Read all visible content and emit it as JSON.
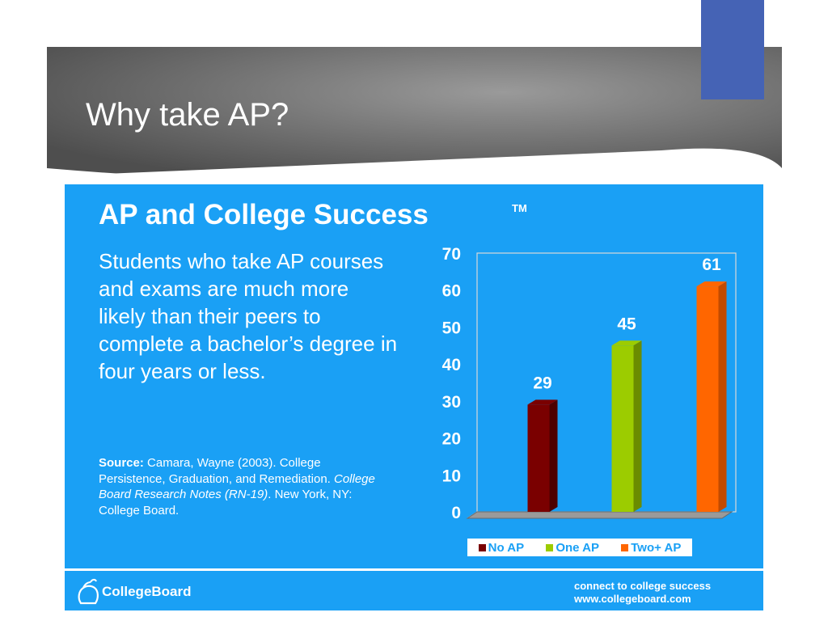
{
  "slide": {
    "title": "Why take AP?"
  },
  "panel": {
    "heading": "AP and College Success",
    "trademark": "TM",
    "body": "Students who take AP courses and exams are much more likely than their peers to complete a bachelor’s degree in four years or less.",
    "source": {
      "label": "Source:",
      "part1": " Camara, Wayne (2003). College Persistence, Graduation, and Remediation. ",
      "italic": "College Board Research Notes (RN-19)",
      "part2": ". New York, NY: College Board."
    },
    "logo_text": "CollegeBoard",
    "tagline_line1": "connect to college success",
    "tagline_line2": "www.collegeboard.com"
  },
  "colors": {
    "panel_bg": "#1aa0f5",
    "accent": "#4563b5",
    "banner_dark": "#5a5a5a"
  },
  "chart_data": {
    "type": "bar",
    "categories": [
      "No AP",
      "One AP",
      "Two+ AP"
    ],
    "values": [
      29,
      45,
      61
    ],
    "colors": [
      "#7a0000",
      "#9ccc00",
      "#ff6600"
    ],
    "side_colors": [
      "#4d0000",
      "#6a8c00",
      "#c24a00"
    ],
    "ylim": [
      0,
      70
    ],
    "yticks": [
      0,
      10,
      20,
      30,
      40,
      50,
      60,
      70
    ],
    "legend": [
      "No AP",
      "One AP",
      "Two+ AP"
    ],
    "legend_position": "bottom",
    "data_labels": true,
    "grid": false,
    "style": "3d"
  }
}
